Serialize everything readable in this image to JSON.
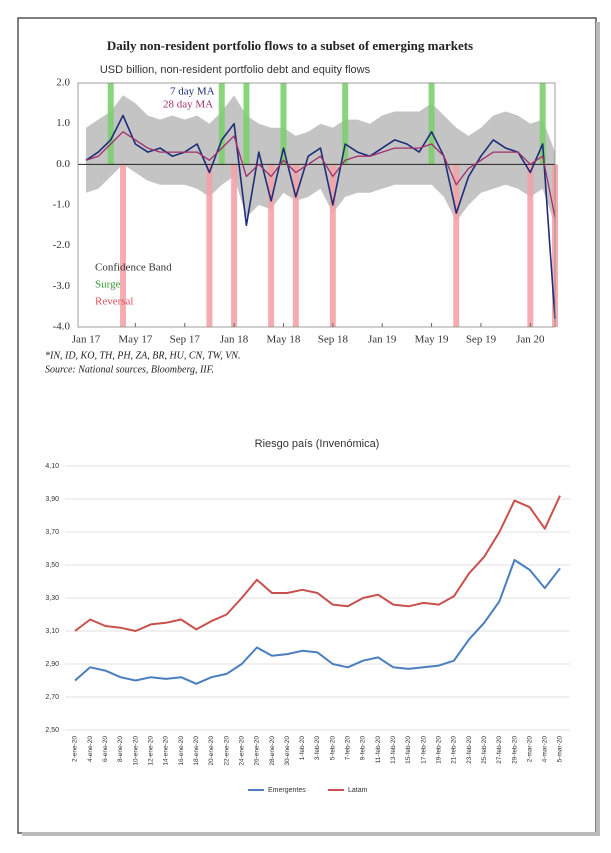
{
  "chart_data": [
    {
      "type": "line",
      "title": "Daily non-resident portfolio flows to a subset of emerging markets",
      "subtitle": "USD billion, non-resident portfolio debt and equity flows",
      "footnote": "*IN, ID, KO, TH, PH, ZA, BR, HU, CN, TW, VN.",
      "source": "Source: National sources, Bloomberg, IIF.",
      "categories": [
        "Jan 17",
        null,
        null,
        null,
        "May 17",
        null,
        null,
        null,
        "Sep 17",
        null,
        null,
        null,
        "Jan 18",
        null,
        null,
        null,
        "May 18",
        null,
        null,
        null,
        "Sep 18",
        null,
        null,
        null,
        "Jan 19",
        null,
        null,
        null,
        "May 19",
        null,
        null,
        null,
        "Sep 19",
        null,
        null,
        null,
        "Jan 20",
        null,
        null
      ],
      "series": [
        {
          "name": "7 day MA",
          "color": "#1f2d7a",
          "values": [
            0.1,
            0.3,
            0.6,
            1.2,
            0.5,
            0.3,
            0.4,
            0.2,
            0.3,
            0.5,
            -0.2,
            0.6,
            1.0,
            -1.5,
            0.3,
            -0.9,
            0.4,
            -0.8,
            0.2,
            0.4,
            -1.0,
            0.5,
            0.3,
            0.2,
            0.4,
            0.6,
            0.5,
            0.3,
            0.8,
            0.2,
            -1.2,
            -0.3,
            0.2,
            0.6,
            0.4,
            0.3,
            -0.2,
            0.5,
            -3.8
          ]
        },
        {
          "name": "28 day MA",
          "color": "#a0306a",
          "values": [
            0.1,
            0.2,
            0.5,
            0.8,
            0.6,
            0.4,
            0.3,
            0.3,
            0.3,
            0.3,
            0.1,
            0.4,
            0.7,
            -0.3,
            0.0,
            -0.3,
            0.1,
            -0.2,
            0.0,
            0.2,
            -0.3,
            0.1,
            0.2,
            0.2,
            0.3,
            0.4,
            0.4,
            0.4,
            0.5,
            0.2,
            -0.5,
            -0.1,
            0.1,
            0.3,
            0.3,
            0.3,
            0.0,
            0.2,
            -1.3
          ]
        }
      ],
      "band": {
        "name": "Confidence Band",
        "color": "#c4c4c4",
        "upper": [
          0.9,
          1.1,
          1.3,
          1.7,
          1.5,
          1.2,
          1.1,
          1.2,
          1.1,
          1.2,
          1.0,
          1.3,
          1.7,
          1.2,
          1.0,
          0.9,
          0.9,
          0.7,
          0.8,
          1.0,
          0.9,
          1.1,
          1.1,
          1.0,
          1.2,
          1.3,
          1.3,
          1.3,
          1.5,
          1.2,
          0.9,
          0.7,
          0.9,
          1.2,
          1.3,
          1.2,
          1.0,
          1.1,
          0.3
        ],
        "lower": [
          -0.7,
          -0.6,
          -0.3,
          0.0,
          -0.2,
          -0.4,
          -0.5,
          -0.5,
          -0.5,
          -0.6,
          -0.8,
          -0.5,
          -0.3,
          -1.3,
          -1.0,
          -1.1,
          -0.7,
          -0.9,
          -0.8,
          -0.6,
          -1.2,
          -0.8,
          -0.7,
          -0.7,
          -0.6,
          -0.5,
          -0.5,
          -0.5,
          -0.5,
          -0.8,
          -1.4,
          -1.0,
          -0.7,
          -0.6,
          -0.5,
          -0.6,
          -0.8,
          -0.6,
          -1.5
        ]
      },
      "surge": {
        "name": "Surge",
        "color": "#7ccf6e",
        "values": [
          null,
          null,
          2,
          null,
          null,
          null,
          null,
          null,
          null,
          null,
          null,
          2,
          null,
          2,
          null,
          null,
          2,
          null,
          null,
          null,
          null,
          2,
          null,
          null,
          null,
          null,
          null,
          null,
          2,
          null,
          null,
          null,
          null,
          null,
          null,
          null,
          null,
          2,
          null
        ]
      },
      "reversal": {
        "name": "Reversal",
        "color": "#f4a3a8",
        "values": [
          null,
          null,
          null,
          -4,
          null,
          null,
          null,
          null,
          null,
          null,
          -4,
          null,
          -4,
          null,
          null,
          -4,
          null,
          -4,
          null,
          null,
          -4,
          null,
          null,
          null,
          null,
          null,
          null,
          null,
          null,
          null,
          -4,
          null,
          null,
          null,
          null,
          null,
          -4,
          null,
          -4
        ]
      },
      "ylim": [
        -4,
        2
      ],
      "yticks": [
        {
          "value": 2,
          "label": "2.0"
        },
        {
          "value": 1,
          "label": "1.0"
        },
        {
          "value": 0,
          "label": "0.0"
        },
        {
          "value": -1,
          "label": "-1.0"
        },
        {
          "value": -2,
          "label": "-2.0"
        },
        {
          "value": -3,
          "label": "-3.0"
        },
        {
          "value": -4,
          "label": "-4.0"
        }
      ],
      "grid": false
    },
    {
      "type": "line",
      "title": "Riesgo país  (Invenómica)",
      "categories": [
        "2-ene-20",
        "4-ene-20",
        "6-ene-20",
        "8-ene-20",
        "10-ene-20",
        "12-ene-20",
        "14-ene-20",
        "16-ene-20",
        "18-ene-20",
        "20-ene-20",
        "22-ene-20",
        "24-ene-20",
        "26-ene-20",
        "28-ene-20",
        "30-ene-20",
        "1-feb-20",
        "3-feb-20",
        "5-feb-20",
        "7-feb-20",
        "9-feb-20",
        "11-feb-20",
        "13-feb-20",
        "15-feb-20",
        "17-feb-20",
        "19-feb-20",
        "21-feb-20",
        "23-feb-20",
        "25-feb-20",
        "27-feb-20",
        "29-feb-20",
        "2-mar-20",
        "4-mar-20",
        "5-mar-20"
      ],
      "series": [
        {
          "name": "Emergentes",
          "color": "#4a7ebf",
          "values": [
            2.8,
            2.88,
            2.86,
            2.82,
            2.8,
            2.82,
            2.81,
            2.82,
            2.78,
            2.82,
            2.84,
            2.9,
            3.0,
            2.95,
            2.96,
            2.98,
            2.97,
            2.9,
            2.88,
            2.92,
            2.94,
            2.88,
            2.87,
            2.88,
            2.89,
            2.92,
            3.05,
            3.15,
            3.28,
            3.53,
            3.47,
            3.36,
            3.48
          ]
        },
        {
          "name": "Latam",
          "color": "#c9504d",
          "values": [
            3.1,
            3.17,
            3.13,
            3.12,
            3.1,
            3.14,
            3.15,
            3.17,
            3.11,
            3.16,
            3.2,
            3.3,
            3.41,
            3.33,
            3.33,
            3.35,
            3.33,
            3.26,
            3.25,
            3.3,
            3.32,
            3.26,
            3.25,
            3.27,
            3.26,
            3.31,
            3.45,
            3.55,
            3.7,
            3.89,
            3.85,
            3.72,
            3.92
          ]
        }
      ],
      "ylim": [
        2.5,
        4.1
      ],
      "yticks": [
        {
          "value": 4.1,
          "label": "4,10"
        },
        {
          "value": 3.9,
          "label": "3,90"
        },
        {
          "value": 3.7,
          "label": "3,70"
        },
        {
          "value": 3.5,
          "label": "3,50"
        },
        {
          "value": 3.3,
          "label": "3,30"
        },
        {
          "value": 3.1,
          "label": "3,10"
        },
        {
          "value": 2.9,
          "label": "2,90"
        },
        {
          "value": 2.7,
          "label": "2,70"
        },
        {
          "value": 2.5,
          "label": "2,50"
        }
      ],
      "grid": true
    }
  ]
}
